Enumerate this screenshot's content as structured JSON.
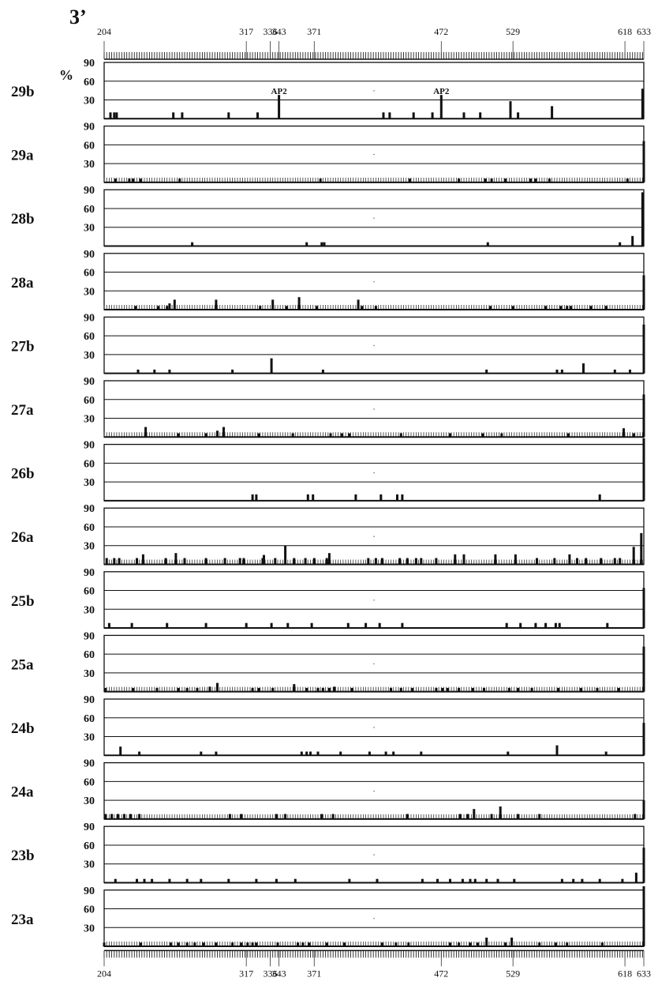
{
  "chart_data": {
    "type": "bar",
    "title": "3’",
    "ylabel": "%",
    "ylim": [
      0,
      90
    ],
    "yticks": [
      "30",
      "60",
      "90"
    ],
    "xlim": [
      204,
      633
    ],
    "xticks": [
      "204",
      "317",
      "336",
      "343",
      "371",
      "472",
      "529",
      "618",
      "633"
    ],
    "annotations": [
      {
        "text": "AP2",
        "x": 343,
        "panel": "29b"
      },
      {
        "text": "AP2",
        "x": 472,
        "panel": "29b"
      }
    ],
    "series": [
      {
        "name": "29b",
        "points": [
          [
            209,
            10
          ],
          [
            212,
            10
          ],
          [
            214,
            10
          ],
          [
            259,
            10
          ],
          [
            266,
            10
          ],
          [
            303,
            10
          ],
          [
            326,
            10
          ],
          [
            343,
            38
          ],
          [
            465,
            10
          ],
          [
            426,
            10
          ],
          [
            431,
            10
          ],
          [
            450,
            10
          ],
          [
            472,
            38
          ],
          [
            490,
            10
          ],
          [
            503,
            10
          ],
          [
            527,
            28
          ],
          [
            533,
            10
          ],
          [
            560,
            20
          ],
          [
            632,
            48
          ]
        ]
      },
      {
        "name": "29a",
        "points": [
          [
            213,
            6
          ],
          [
            224,
            6
          ],
          [
            227,
            6
          ],
          [
            233,
            6
          ],
          [
            264,
            6
          ],
          [
            376,
            6
          ],
          [
            447,
            6
          ],
          [
            486,
            6
          ],
          [
            507,
            6
          ],
          [
            512,
            6
          ],
          [
            523,
            6
          ],
          [
            543,
            6
          ],
          [
            547,
            6
          ],
          [
            558,
            6
          ],
          [
            620,
            6
          ],
          [
            633,
            66
          ]
        ]
      },
      {
        "name": "28b",
        "points": [
          [
            274,
            6
          ],
          [
            365,
            6
          ],
          [
            377,
            6
          ],
          [
            379,
            6
          ],
          [
            509,
            6
          ],
          [
            614,
            6
          ],
          [
            624,
            16
          ],
          [
            632,
            86
          ]
        ]
      },
      {
        "name": "28a",
        "points": [
          [
            229,
            6
          ],
          [
            247,
            6
          ],
          [
            254,
            6
          ],
          [
            256,
            10
          ],
          [
            260,
            16
          ],
          [
            293,
            16
          ],
          [
            328,
            6
          ],
          [
            338,
            16
          ],
          [
            349,
            6
          ],
          [
            359,
            20
          ],
          [
            373,
            6
          ],
          [
            406,
            16
          ],
          [
            409,
            6
          ],
          [
            420,
            6
          ],
          [
            511,
            6
          ],
          [
            529,
            6
          ],
          [
            555,
            6
          ],
          [
            567,
            6
          ],
          [
            572,
            6
          ],
          [
            575,
            6
          ],
          [
            591,
            6
          ],
          [
            603,
            6
          ],
          [
            633,
            55
          ]
        ]
      },
      {
        "name": "27b",
        "points": [
          [
            231,
            6
          ],
          [
            244,
            6
          ],
          [
            256,
            6
          ],
          [
            306,
            6
          ],
          [
            337,
            24
          ],
          [
            378,
            6
          ],
          [
            508,
            6
          ],
          [
            564,
            6
          ],
          [
            568,
            6
          ],
          [
            585,
            16
          ],
          [
            610,
            6
          ],
          [
            622,
            6
          ],
          [
            633,
            78
          ]
        ]
      },
      {
        "name": "27a",
        "points": [
          [
            237,
            16
          ],
          [
            263,
            6
          ],
          [
            285,
            6
          ],
          [
            294,
            10
          ],
          [
            299,
            16
          ],
          [
            327,
            6
          ],
          [
            354,
            6
          ],
          [
            384,
            6
          ],
          [
            393,
            6
          ],
          [
            399,
            6
          ],
          [
            440,
            6
          ],
          [
            479,
            6
          ],
          [
            505,
            6
          ],
          [
            520,
            6
          ],
          [
            573,
            6
          ],
          [
            617,
            14
          ],
          [
            625,
            6
          ],
          [
            633,
            68
          ]
        ]
      },
      {
        "name": "26b",
        "points": [
          [
            322,
            10
          ],
          [
            325,
            10
          ],
          [
            366,
            10
          ],
          [
            370,
            10
          ],
          [
            404,
            10
          ],
          [
            424,
            10
          ],
          [
            437,
            10
          ],
          [
            441,
            10
          ],
          [
            598,
            10
          ],
          [
            633,
            100
          ]
        ]
      },
      {
        "name": "26a",
        "points": [
          [
            206,
            10
          ],
          [
            212,
            10
          ],
          [
            216,
            10
          ],
          [
            230,
            10
          ],
          [
            235,
            16
          ],
          [
            253,
            10
          ],
          [
            261,
            18
          ],
          [
            268,
            10
          ],
          [
            285,
            10
          ],
          [
            300,
            10
          ],
          [
            312,
            10
          ],
          [
            315,
            10
          ],
          [
            330,
            10
          ],
          [
            331,
            15
          ],
          [
            340,
            10
          ],
          [
            348,
            30
          ],
          [
            355,
            10
          ],
          [
            364,
            10
          ],
          [
            371,
            10
          ],
          [
            381,
            10
          ],
          [
            383,
            18
          ],
          [
            414,
            10
          ],
          [
            420,
            10
          ],
          [
            425,
            10
          ],
          [
            439,
            10
          ],
          [
            445,
            10
          ],
          [
            452,
            10
          ],
          [
            456,
            10
          ],
          [
            468,
            10
          ],
          [
            483,
            16
          ],
          [
            490,
            16
          ],
          [
            515,
            16
          ],
          [
            531,
            16
          ],
          [
            548,
            10
          ],
          [
            562,
            10
          ],
          [
            574,
            16
          ],
          [
            580,
            10
          ],
          [
            587,
            10
          ],
          [
            599,
            10
          ],
          [
            610,
            10
          ],
          [
            614,
            10
          ],
          [
            625,
            28
          ],
          [
            631,
            50
          ]
        ]
      },
      {
        "name": "25b",
        "points": [
          [
            208,
            8
          ],
          [
            226,
            8
          ],
          [
            254,
            8
          ],
          [
            285,
            8
          ],
          [
            317,
            8
          ],
          [
            337,
            8
          ],
          [
            350,
            8
          ],
          [
            369,
            8
          ],
          [
            398,
            8
          ],
          [
            412,
            8
          ],
          [
            423,
            8
          ],
          [
            441,
            8
          ],
          [
            524,
            8
          ],
          [
            535,
            8
          ],
          [
            547,
            8
          ],
          [
            555,
            8
          ],
          [
            563,
            8
          ],
          [
            566,
            8
          ],
          [
            604,
            8
          ],
          [
            633,
            64
          ]
        ]
      },
      {
        "name": "25a",
        "points": [
          [
            205,
            6
          ],
          [
            227,
            6
          ],
          [
            246,
            6
          ],
          [
            263,
            6
          ],
          [
            270,
            6
          ],
          [
            278,
            6
          ],
          [
            288,
            8
          ],
          [
            294,
            14
          ],
          [
            322,
            6
          ],
          [
            327,
            6
          ],
          [
            338,
            6
          ],
          [
            355,
            12
          ],
          [
            365,
            6
          ],
          [
            374,
            6
          ],
          [
            378,
            6
          ],
          [
            383,
            6
          ],
          [
            387,
            8
          ],
          [
            401,
            6
          ],
          [
            432,
            6
          ],
          [
            440,
            6
          ],
          [
            449,
            6
          ],
          [
            468,
            6
          ],
          [
            473,
            6
          ],
          [
            477,
            6
          ],
          [
            486,
            6
          ],
          [
            497,
            6
          ],
          [
            506,
            6
          ],
          [
            526,
            6
          ],
          [
            533,
            6
          ],
          [
            544,
            6
          ],
          [
            565,
            6
          ],
          [
            583,
            6
          ],
          [
            596,
            6
          ],
          [
            613,
            6
          ],
          [
            633,
            72
          ]
        ]
      },
      {
        "name": "24b",
        "points": [
          [
            217,
            14
          ],
          [
            232,
            6
          ],
          [
            281,
            6
          ],
          [
            293,
            6
          ],
          [
            361,
            6
          ],
          [
            365,
            6
          ],
          [
            368,
            6
          ],
          [
            374,
            6
          ],
          [
            392,
            6
          ],
          [
            415,
            6
          ],
          [
            428,
            6
          ],
          [
            434,
            6
          ],
          [
            456,
            6
          ],
          [
            525,
            6
          ],
          [
            564,
            16
          ],
          [
            603,
            6
          ],
          [
            633,
            52
          ]
        ]
      },
      {
        "name": "24a",
        "points": [
          [
            205,
            8
          ],
          [
            210,
            8
          ],
          [
            215,
            8
          ],
          [
            220,
            8
          ],
          [
            225,
            8
          ],
          [
            232,
            8
          ],
          [
            304,
            8
          ],
          [
            313,
            8
          ],
          [
            341,
            8
          ],
          [
            348,
            8
          ],
          [
            377,
            8
          ],
          [
            386,
            8
          ],
          [
            445,
            8
          ],
          [
            487,
            8
          ],
          [
            493,
            8
          ],
          [
            498,
            16
          ],
          [
            512,
            8
          ],
          [
            519,
            20
          ],
          [
            533,
            8
          ],
          [
            550,
            8
          ],
          [
            626,
            8
          ],
          [
            633,
            30
          ]
        ]
      },
      {
        "name": "23b",
        "points": [
          [
            213,
            6
          ],
          [
            230,
            6
          ],
          [
            236,
            6
          ],
          [
            242,
            6
          ],
          [
            256,
            6
          ],
          [
            270,
            6
          ],
          [
            281,
            6
          ],
          [
            303,
            6
          ],
          [
            325,
            6
          ],
          [
            341,
            6
          ],
          [
            356,
            6
          ],
          [
            399,
            6
          ],
          [
            421,
            6
          ],
          [
            457,
            6
          ],
          [
            469,
            6
          ],
          [
            479,
            6
          ],
          [
            489,
            6
          ],
          [
            495,
            6
          ],
          [
            499,
            6
          ],
          [
            508,
            6
          ],
          [
            517,
            6
          ],
          [
            530,
            6
          ],
          [
            568,
            6
          ],
          [
            577,
            6
          ],
          [
            584,
            6
          ],
          [
            598,
            6
          ],
          [
            616,
            6
          ],
          [
            627,
            16
          ],
          [
            633,
            56
          ]
        ]
      },
      {
        "name": "23a",
        "points": [
          [
            204,
            6
          ],
          [
            233,
            6
          ],
          [
            257,
            6
          ],
          [
            263,
            6
          ],
          [
            270,
            6
          ],
          [
            276,
            6
          ],
          [
            283,
            6
          ],
          [
            293,
            6
          ],
          [
            306,
            6
          ],
          [
            313,
            6
          ],
          [
            318,
            6
          ],
          [
            322,
            6
          ],
          [
            325,
            6
          ],
          [
            342,
            6
          ],
          [
            358,
            6
          ],
          [
            362,
            6
          ],
          [
            367,
            6
          ],
          [
            381,
            6
          ],
          [
            395,
            6
          ],
          [
            425,
            6
          ],
          [
            436,
            6
          ],
          [
            446,
            6
          ],
          [
            479,
            6
          ],
          [
            486,
            6
          ],
          [
            495,
            6
          ],
          [
            501,
            6
          ],
          [
            508,
            14
          ],
          [
            523,
            6
          ],
          [
            528,
            14
          ],
          [
            550,
            6
          ],
          [
            563,
            6
          ],
          [
            572,
            6
          ],
          [
            600,
            6
          ],
          [
            633,
            96
          ]
        ]
      }
    ]
  }
}
